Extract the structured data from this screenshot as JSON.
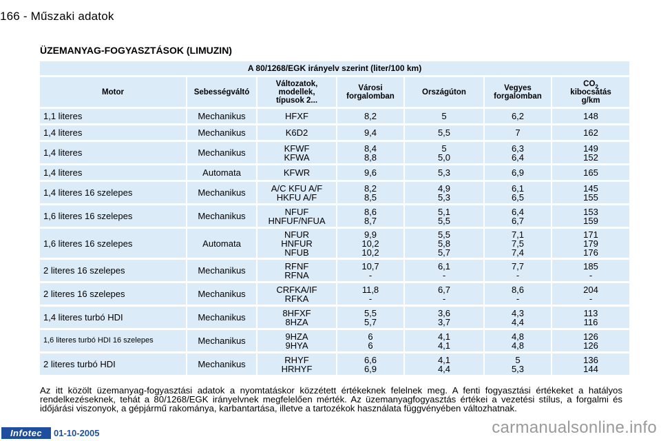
{
  "header": {
    "page": "166 - Műszaki adatok"
  },
  "section_title": "ÜZEMANYAG-FOGYASZTÁSOK (LIMUZIN)",
  "table": {
    "super_header": "A 80/1268/EGK irányelv szerint (liter/100 km)",
    "columns": {
      "motor": "Motor",
      "gearbox": "Sebességváltó",
      "variants": "Változatok,\nmodellek,\ntípusok 2...",
      "city": "Városi\nforgalomban",
      "highway": "Országúton",
      "mixed": "Vegyes\nforgalomban",
      "co2_a": "CO",
      "co2_sub": "2",
      "co2_b": "kibocsátás\ng/km"
    },
    "rows": [
      {
        "motor": "1,1 literes",
        "gearbox": "Mechanikus",
        "variants": "HFXF",
        "city": "8,2",
        "highway": "5",
        "mixed": "6,2",
        "co2": "148"
      },
      {
        "motor": "1,4 literes",
        "gearbox": "Mechanikus",
        "variants": "K6D2",
        "city": "9,4",
        "highway": "5,5",
        "mixed": "7",
        "co2": "162"
      },
      {
        "motor": "1,4 literes",
        "gearbox": "Mechanikus",
        "variants": "KFWF\nKFWA",
        "city": "8,4\n8,8",
        "highway": "5\n5,0",
        "mixed": "6,3\n6,4",
        "co2": "149\n152"
      },
      {
        "motor": "1,4 literes",
        "gearbox": "Automata",
        "variants": "KFWR",
        "city": "9,6",
        "highway": "5,3",
        "mixed": "6,9",
        "co2": "165"
      },
      {
        "motor": "1,4 literes 16 szelepes",
        "gearbox": "Mechanikus",
        "variants": "A/C KFU A/F\nHKFU A/F",
        "city": "8,2\n8,5",
        "highway": "4,9\n5,3",
        "mixed": "6,1\n6,5",
        "co2": "145\n155"
      },
      {
        "motor": "1,6 literes 16 szelepes",
        "gearbox": "Mechanikus",
        "variants": "NFUF\nHNFUF/NFUA",
        "city": "8,6\n8,7",
        "highway": "5,1\n5,5",
        "mixed": "6,4\n6,7",
        "co2": "153\n159"
      },
      {
        "motor": "1,6 literes 16 szelepes",
        "gearbox": "Automata",
        "variants": "NFUR\nHNFUR\nNFUB",
        "city": "9,9\n10,2\n10,2",
        "highway": "5,5\n5,8\n5,7",
        "mixed": "7,1\n7,5\n7,4",
        "co2": "171\n179\n176"
      },
      {
        "motor": "2 literes 16 szelepes",
        "gearbox": "Mechanikus",
        "variants": "RFNF\nRFNA",
        "city": "10,7\n-",
        "highway": "6,1\n-",
        "mixed": "7,7\n-",
        "co2": "185\n-"
      },
      {
        "motor": "2 literes 16 szelepes",
        "gearbox": "Mechanikus",
        "variants": "CRFKA/IF\nRFKA",
        "city": "11,8\n-",
        "highway": "6,7\n-",
        "mixed": "8,6\n-",
        "co2": "204\n-"
      },
      {
        "motor": "1,4 literes turbó HDI",
        "gearbox": "Mechanikus",
        "variants": "8HFXF\n8HZA",
        "city": "5,5\n5,7",
        "highway": "3,6\n3,7",
        "mixed": "4,3\n4,4",
        "co2": "113\n116"
      },
      {
        "motor": "1,6 literes turbó HDI 16 szelepes",
        "gearbox": "Mechanikus",
        "variants": "9HZA\n9HYA",
        "city": "6\n6",
        "highway": "4,1\n4,1",
        "mixed": "4,8\n4,8",
        "co2": "126\n126"
      },
      {
        "motor": "2 literes turbó HDI",
        "gearbox": "Mechanikus",
        "variants": "RHYF\nHRHYF",
        "city": "6,6\n6,9",
        "highway": "4,1\n4,4",
        "mixed": "5\n5,3",
        "co2": "136\n144"
      }
    ]
  },
  "footnote": "Az itt közölt üzemanyag-fogyasztási adatok a nyomtatáskor közzétett értékeknek felelnek meg. A fenti fogyasztási értékeket a hatályos rendelkezéseknek, tehát a 80/1268/EGK irányelvnek megfelelően mérték. Az üzemanyagfogyasztás értékei a vezetési stílus, a forgalmi és időjárási viszonyok, a gépjármű rakománya, karbantartása, illetve a tartozékok használata függvényében változhatnak.",
  "footer": {
    "logo": "Infotec",
    "date": "01-10-2005"
  },
  "watermark": "carmanualsonline.info"
}
